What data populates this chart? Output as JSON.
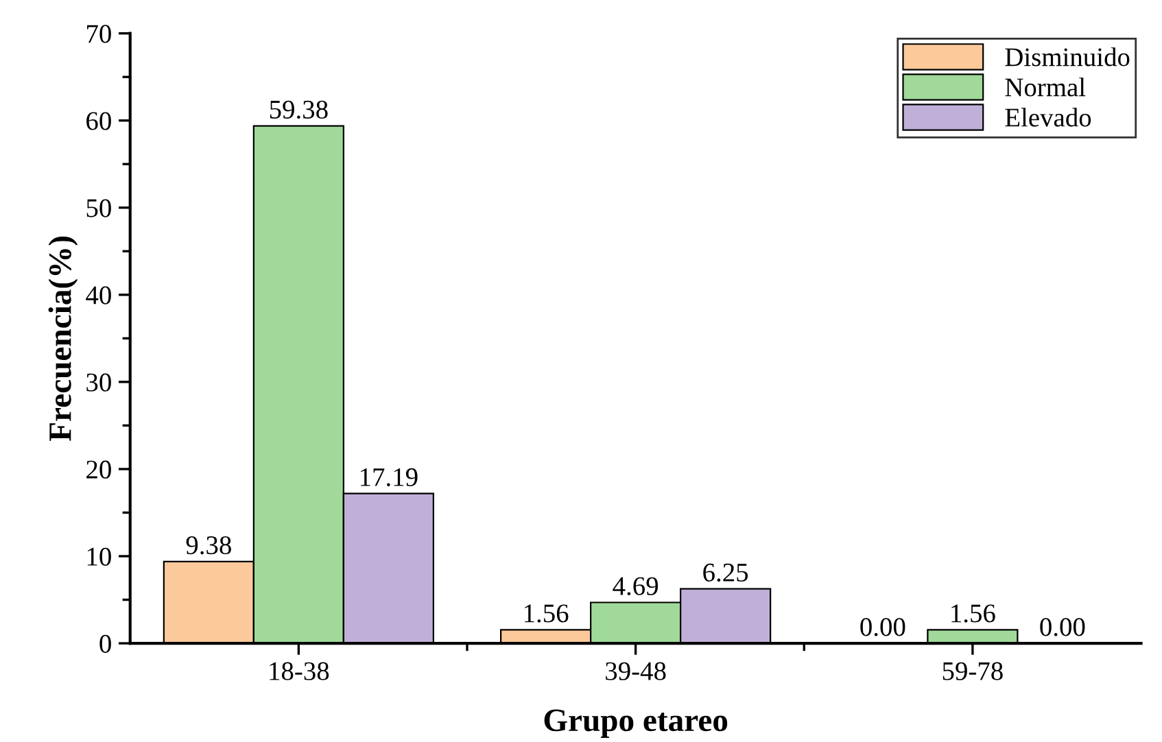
{
  "chart_data": {
    "type": "bar",
    "xlabel": "Grupo etareo",
    "ylabel": "Frecuencia(%)",
    "categories": [
      "18-38",
      "39-48",
      "59-78"
    ],
    "series": [
      {
        "name": "Disminuido",
        "color": "#fbc99a",
        "values": [
          9.38,
          1.56,
          0.0
        ],
        "value_labels": [
          "9.38",
          "1.56",
          "0.00"
        ]
      },
      {
        "name": "Normal",
        "color": "#a0d99a",
        "values": [
          59.38,
          4.69,
          1.56
        ],
        "value_labels": [
          "59.38",
          "4.69",
          "1.56"
        ]
      },
      {
        "name": "Elevado",
        "color": "#c0b0d8",
        "values": [
          17.19,
          6.25,
          0.0
        ],
        "value_labels": [
          "17.19",
          "6.25",
          "0.00"
        ]
      }
    ],
    "ylim": [
      0,
      70
    ],
    "yticks": [
      0,
      10,
      20,
      30,
      40,
      50,
      60,
      70
    ],
    "legend": "top right",
    "grid": false
  }
}
